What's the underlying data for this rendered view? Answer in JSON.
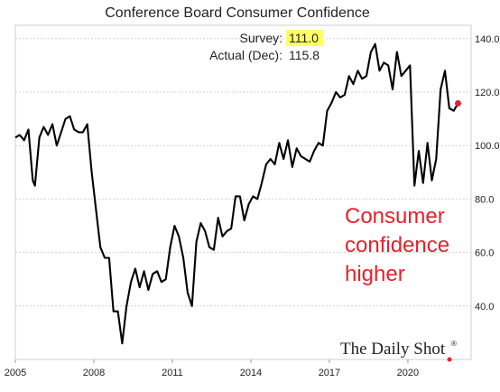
{
  "chart_data": {
    "type": "line",
    "title": "Conference Board Consumer Confidence",
    "xlabel": "",
    "ylabel": "",
    "x_ticks": [
      "2005",
      "2008",
      "2011",
      "2014",
      "2017",
      "2020"
    ],
    "y_ticks": [
      "40.0",
      "60.0",
      "80.0",
      "100.0",
      "120.0",
      "140.0"
    ],
    "xlim": [
      "2005-01",
      "2022-06"
    ],
    "ylim": [
      20,
      145
    ],
    "grid": "horizontal",
    "legend": {
      "survey_label": "Survey:",
      "survey_value": "111.0",
      "actual_label": "Actual (Dec):",
      "actual_value": "115.8"
    },
    "annotation": [
      "Consumer",
      "confidence",
      "higher"
    ],
    "brand": "The Daily Shot",
    "brand_mark": "®",
    "colors": {
      "line": "#000000",
      "marker": "#e8212b",
      "highlight": "#ffff66",
      "annotation": "#e8212b"
    },
    "series": [
      {
        "x": [
          "2005-01",
          "2005-03",
          "2005-05",
          "2005-07",
          "2005-09",
          "2005-10",
          "2005-12",
          "2006-02",
          "2006-04",
          "2006-06",
          "2006-08",
          "2006-10",
          "2006-12",
          "2007-02",
          "2007-04",
          "2007-06",
          "2007-08",
          "2007-10",
          "2007-12",
          "2008-02",
          "2008-04",
          "2008-06",
          "2008-08",
          "2008-10",
          "2008-12",
          "2009-02",
          "2009-04",
          "2009-06",
          "2009-08",
          "2009-10",
          "2009-12",
          "2010-02",
          "2010-04",
          "2010-06",
          "2010-08",
          "2010-10",
          "2010-12",
          "2011-02",
          "2011-04",
          "2011-06",
          "2011-08",
          "2011-10",
          "2011-12",
          "2012-02",
          "2012-04",
          "2012-06",
          "2012-08",
          "2012-10",
          "2012-12",
          "2013-02",
          "2013-04",
          "2013-06",
          "2013-08",
          "2013-10",
          "2013-12",
          "2014-02",
          "2014-04",
          "2014-06",
          "2014-08",
          "2014-10",
          "2014-12",
          "2015-02",
          "2015-04",
          "2015-06",
          "2015-08",
          "2015-10",
          "2015-12",
          "2016-02",
          "2016-04",
          "2016-06",
          "2016-08",
          "2016-10",
          "2016-12",
          "2017-02",
          "2017-04",
          "2017-06",
          "2017-08",
          "2017-10",
          "2017-12",
          "2018-02",
          "2018-04",
          "2018-06",
          "2018-08",
          "2018-10",
          "2018-12",
          "2019-02",
          "2019-04",
          "2019-06",
          "2019-08",
          "2019-10",
          "2019-12",
          "2020-02",
          "2020-04",
          "2020-06",
          "2020-08",
          "2020-10",
          "2020-12",
          "2021-02",
          "2021-04",
          "2021-06",
          "2021-08",
          "2021-10",
          "2021-12"
        ],
        "y": [
          103,
          104,
          102,
          106,
          87,
          85,
          103,
          107,
          104,
          108,
          100,
          105,
          110,
          111,
          106,
          105,
          105,
          108,
          90,
          76,
          62,
          58,
          58,
          38,
          38,
          26,
          40,
          49,
          54,
          47,
          53,
          46,
          52,
          53,
          49,
          50,
          62,
          70,
          66,
          58,
          45,
          40,
          64,
          71,
          68,
          62,
          61,
          73,
          66,
          68,
          69,
          81,
          81,
          72,
          78,
          81,
          80,
          86,
          93,
          95,
          93,
          101,
          95,
          102,
          92,
          99,
          96,
          95,
          94,
          98,
          101,
          100,
          113,
          116,
          120,
          118,
          119,
          126,
          123,
          128,
          125,
          126,
          135,
          138,
          128,
          131,
          130,
          121,
          135,
          126,
          128,
          130,
          85,
          98,
          86,
          101,
          87,
          95,
          121,
          128,
          114,
          113,
          115.8
        ]
      }
    ],
    "marker": {
      "x": "2021-12",
      "y": 115.8
    }
  }
}
